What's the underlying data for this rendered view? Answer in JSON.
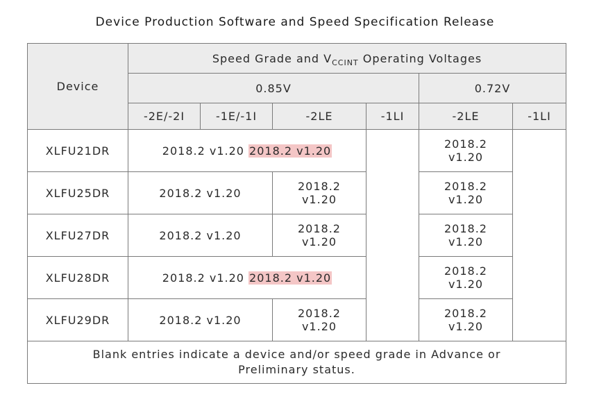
{
  "title": "Device Production Software and Speed Specification Release",
  "header": {
    "device": "Device",
    "speed_grade_prefix": "Speed Grade and V",
    "speed_grade_sub": "CCINT",
    "speed_grade_suffix": " Operating Voltages",
    "v085": "0.85V",
    "v072": "0.72V",
    "grades": {
      "g2e2i": "-2E/-2I",
      "g1e1i": "-1E/-1I",
      "g2le_085": "-2LE",
      "g1li_085": "-1LI",
      "g2le_072": "-2LE",
      "g1li_072": "-1LI"
    }
  },
  "rows": [
    {
      "device": "XLFU21DR",
      "c1": "2018.2 v1.20",
      "c2": "2018.2 v1.20",
      "c3_l1": "2018.2",
      "c3_l2": "v1.20"
    },
    {
      "device": "XLFU25DR",
      "c1": "2018.2 v1.20",
      "c2_l1": "2018.2",
      "c2_l2": "v1.20",
      "c3_l1": "2018.2",
      "c3_l2": "v1.20"
    },
    {
      "device": "XLFU27DR",
      "c1": "2018.2 v1.20",
      "c2_l1": "2018.2",
      "c2_l2": "v1.20",
      "c3_l1": "2018.2",
      "c3_l2": "v1.20"
    },
    {
      "device": "XLFU28DR",
      "c1": "2018.2 v1.20",
      "c2": "2018.2 v1.20",
      "c3_l1": "2018.2",
      "c3_l2": "v1.20"
    },
    {
      "device": "XLFU29DR",
      "c1": "2018.2 v1.20",
      "c2_l1": "2018.2",
      "c2_l2": "v1.20",
      "c3_l1": "2018.2",
      "c3_l2": "v1.20"
    }
  ],
  "footer": {
    "line1": "Blank entries indicate a device and/or speed grade in Advance or",
    "line2": "Preliminary status."
  },
  "colors": {
    "highlight": "#f4c6c6",
    "header_bg": "#ececec",
    "border": "#7a7a7a"
  }
}
